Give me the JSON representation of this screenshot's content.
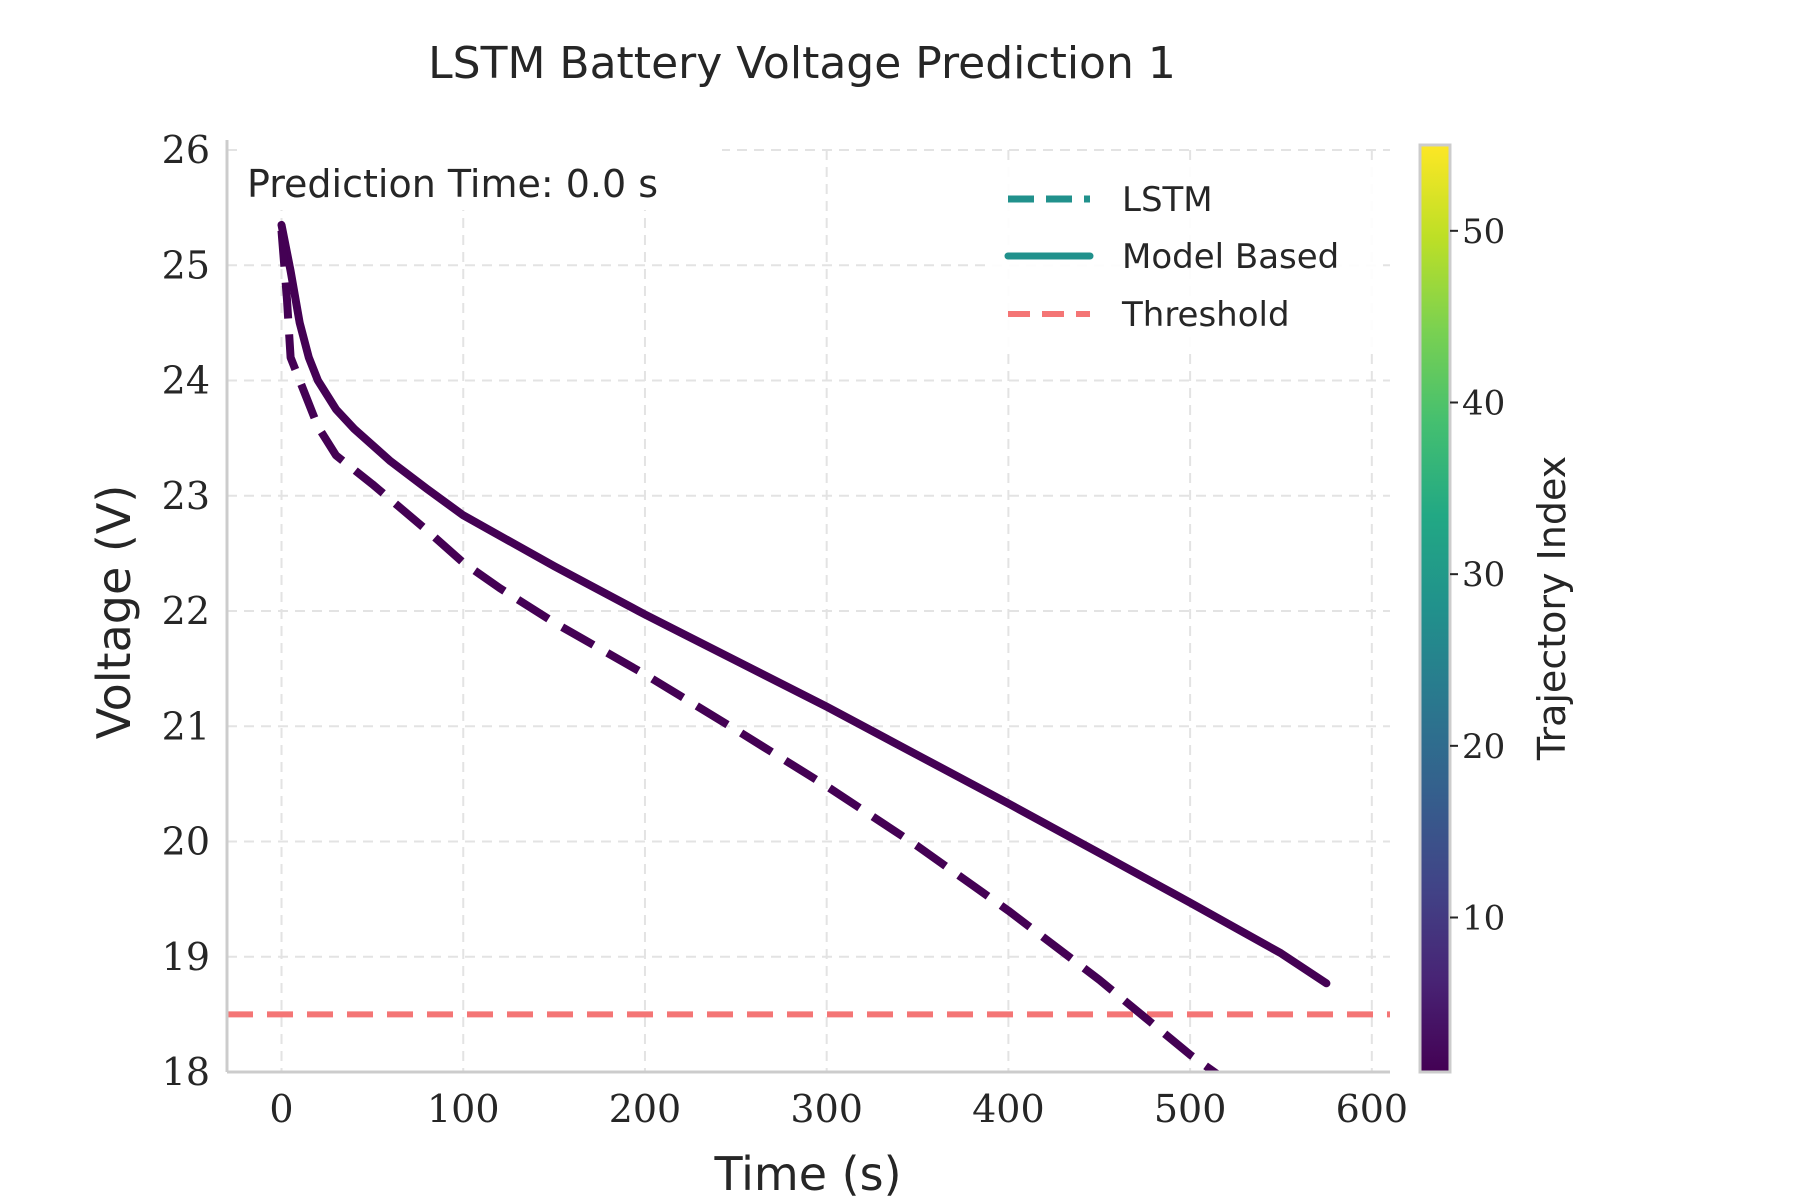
{
  "chart_data": {
    "type": "line",
    "title": "LSTM Battery Voltage Prediction 1",
    "xlabel": "Time (s)",
    "ylabel": "Voltage (V)",
    "xlim": [
      -30,
      610
    ],
    "ylim": [
      18,
      26
    ],
    "xticks": [
      0,
      100,
      200,
      300,
      400,
      500,
      600
    ],
    "yticks": [
      18,
      19,
      20,
      21,
      22,
      23,
      24,
      25,
      26
    ],
    "grid": true,
    "annotation": "Prediction Time: 0.0 s",
    "legend": {
      "placement": "top-right",
      "entries": [
        {
          "label": "LSTM",
          "style": "dashed",
          "color": "#21918c"
        },
        {
          "label": "Model Based",
          "style": "solid",
          "color": "#21918c"
        },
        {
          "label": "Threshold",
          "style": "dashed",
          "color": "#f47575"
        }
      ]
    },
    "series": [
      {
        "style": "solid",
        "color": "#440154",
        "x": [
          0,
          5,
          10,
          15,
          20,
          30,
          40,
          60,
          80,
          100,
          150,
          200,
          250,
          300,
          350,
          400,
          450,
          500,
          550,
          575
        ],
        "y": [
          25.35,
          24.95,
          24.5,
          24.2,
          24.0,
          23.75,
          23.58,
          23.3,
          23.06,
          22.83,
          22.39,
          21.97,
          21.57,
          21.17,
          20.75,
          20.33,
          19.9,
          19.47,
          19.03,
          18.77
        ]
      },
      {
        "style": "dashed",
        "color": "#440154",
        "x": [
          0,
          3,
          5,
          10,
          20,
          30,
          50,
          80,
          100,
          120,
          150,
          200,
          250,
          300,
          350,
          400,
          450,
          500,
          515
        ],
        "y": [
          25.3,
          24.7,
          24.2,
          24.0,
          23.6,
          23.35,
          23.1,
          22.7,
          22.42,
          22.2,
          21.9,
          21.45,
          20.97,
          20.48,
          19.96,
          19.4,
          18.8,
          18.15,
          17.98
        ]
      }
    ],
    "threshold": {
      "y": 18.5,
      "color": "#f47575"
    },
    "colorbar": {
      "label": "Trajectory Index",
      "range": [
        1,
        55
      ],
      "ticks": [
        10,
        20,
        30,
        40,
        50
      ],
      "colormap": "viridis"
    }
  }
}
